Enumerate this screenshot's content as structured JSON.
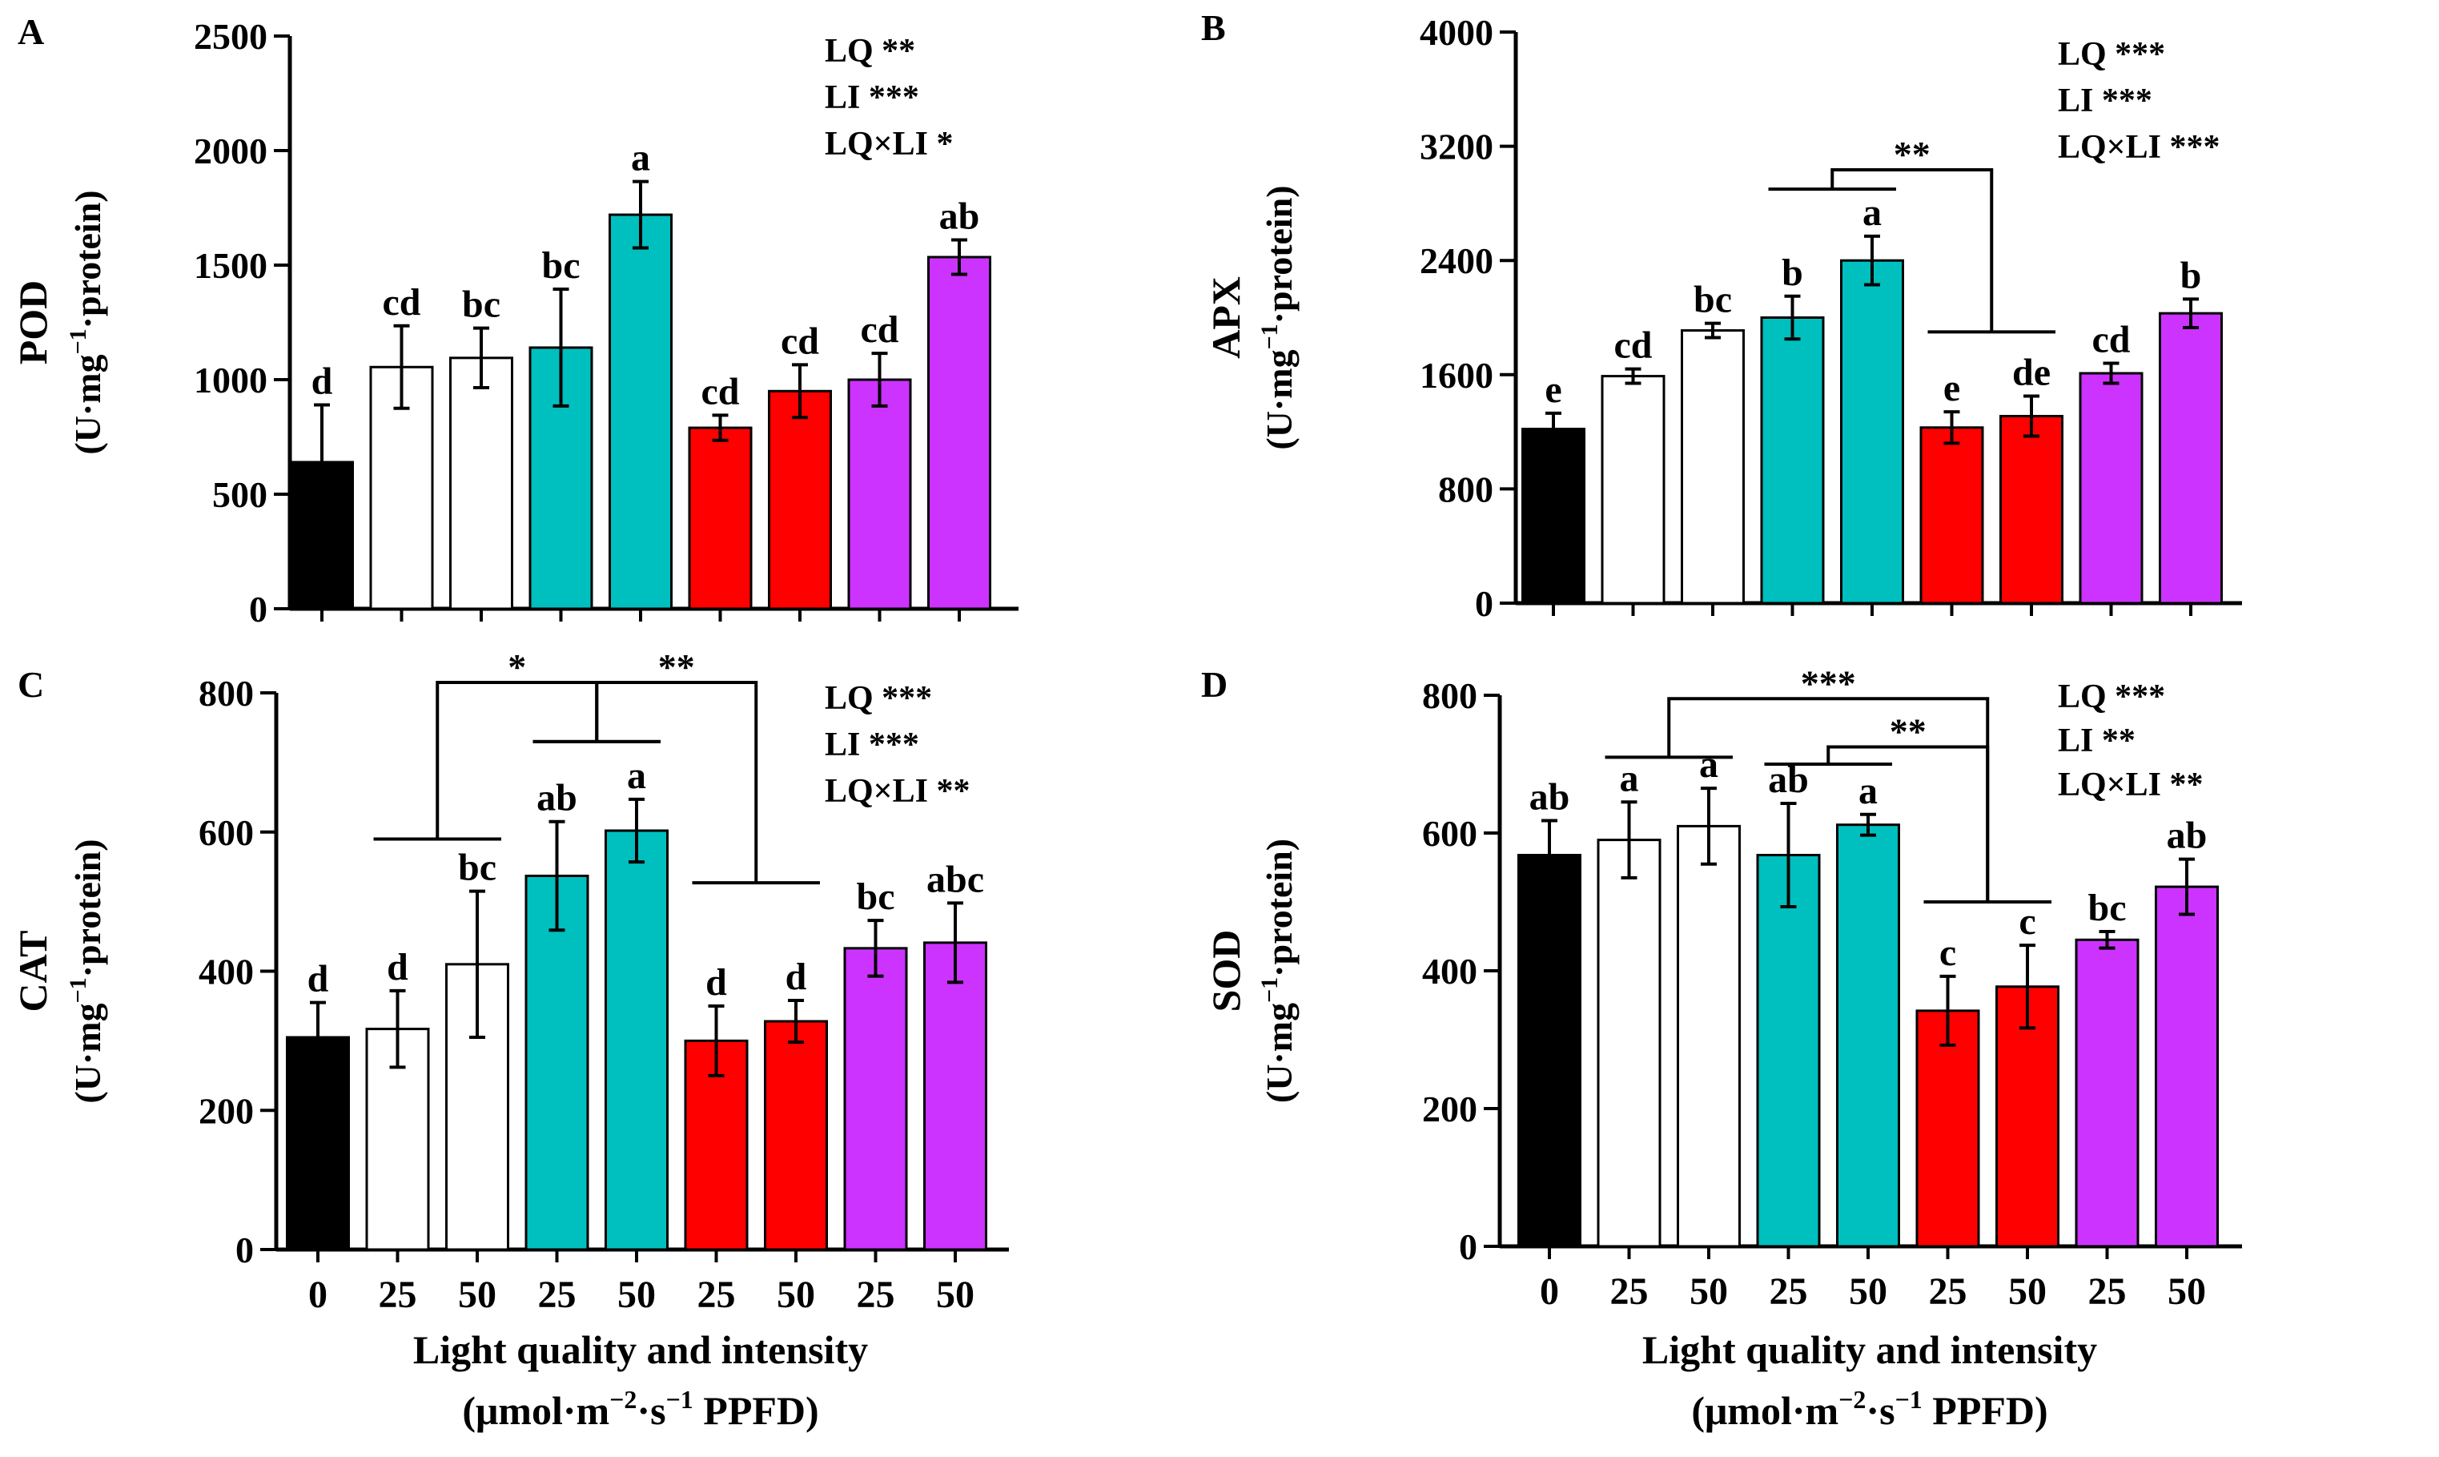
{
  "chart_data": [
    {
      "panel": "A",
      "type": "bar",
      "title": "",
      "ylabel_main": "POD",
      "ylabel_unit_prefix": "(U·mg",
      "ylabel_unit_sup": "−1",
      "ylabel_unit_suffix": "·protein)",
      "ylim": [
        0,
        2500
      ],
      "yticks": [
        0,
        500,
        1000,
        1500,
        2000,
        2500
      ],
      "ytick_labels": [
        "0",
        "500",
        "1000",
        "1500",
        "2000",
        "2500"
      ],
      "x_tick_labels": [
        "0",
        "25",
        "50",
        "25",
        "50",
        "25",
        "50",
        "25",
        "50"
      ],
      "values": [
        640,
        1055,
        1095,
        1140,
        1720,
        790,
        950,
        1000,
        1535
      ],
      "errors": [
        250,
        180,
        130,
        255,
        145,
        55,
        115,
        115,
        75
      ],
      "letters": [
        "d",
        "cd",
        "bc",
        "bc",
        "a",
        "cd",
        "cd",
        "cd",
        "ab"
      ],
      "colors": [
        "#000000",
        "#ffffff",
        "#ffffff",
        "#00bfbf",
        "#00bfbf",
        "#ff0000",
        "#ff0000",
        "#cc33ff",
        "#cc33ff"
      ],
      "stats": [
        "LQ **",
        "LI ***",
        "LQ×LI *"
      ],
      "brackets": []
    },
    {
      "panel": "B",
      "type": "bar",
      "title": "",
      "ylabel_main": "APX",
      "ylabel_unit_prefix": "(U·mg",
      "ylabel_unit_sup": "−1",
      "ylabel_unit_suffix": "·protein)",
      "ylim": [
        0,
        4000
      ],
      "yticks": [
        0,
        800,
        1600,
        2400,
        3200,
        4000
      ],
      "ytick_labels": [
        "0",
        "800",
        "1600",
        "2400",
        "3200",
        "4000"
      ],
      "x_tick_labels": [
        "0",
        "25",
        "50",
        "25",
        "50",
        "25",
        "50",
        "25",
        "50"
      ],
      "values": [
        1220,
        1590,
        1910,
        2000,
        2400,
        1230,
        1310,
        1610,
        2030
      ],
      "errors": [
        110,
        50,
        50,
        150,
        170,
        110,
        140,
        70,
        100
      ],
      "letters": [
        "e",
        "cd",
        "bc",
        "b",
        "a",
        "e",
        "de",
        "cd",
        "b"
      ],
      "colors": [
        "#000000",
        "#ffffff",
        "#ffffff",
        "#00bfbf",
        "#00bfbf",
        "#ff0000",
        "#ff0000",
        "#cc33ff",
        "#cc33ff"
      ],
      "stats": [
        "LQ ***",
        "LI ***",
        "LQ×LI ***"
      ],
      "brackets": [
        {
          "label": "**",
          "group_a": [
            3,
            4
          ],
          "group_b": [
            5,
            6
          ],
          "top": 3035,
          "leg_a": 2900,
          "leg_b": 1900
        }
      ]
    },
    {
      "panel": "C",
      "type": "bar",
      "title": "",
      "ylabel_main": "CAT",
      "ylabel_unit_prefix": "(U·mg",
      "ylabel_unit_sup": "−1",
      "ylabel_unit_suffix": "·protein)",
      "ylim": [
        0,
        800
      ],
      "yticks": [
        0,
        200,
        400,
        600,
        800
      ],
      "ytick_labels": [
        "0",
        "200",
        "400",
        "600",
        "800"
      ],
      "x_tick_labels": [
        "0",
        "25",
        "50",
        "25",
        "50",
        "25",
        "50",
        "25",
        "50"
      ],
      "values": [
        305,
        317,
        410,
        537,
        602,
        300,
        328,
        433,
        441
      ],
      "errors": [
        50,
        55,
        105,
        78,
        45,
        50,
        30,
        40,
        57
      ],
      "letters": [
        "d",
        "d",
        "bc",
        "ab",
        "a",
        "d",
        "d",
        "bc",
        "abc"
      ],
      "colors": [
        "#000000",
        "#ffffff",
        "#ffffff",
        "#00bfbf",
        "#00bfbf",
        "#ff0000",
        "#ff0000",
        "#cc33ff",
        "#cc33ff"
      ],
      "stats": [
        "LQ ***",
        "LI ***",
        "LQ×LI **"
      ],
      "brackets": [
        {
          "label": "*",
          "group_a": [
            1,
            2
          ],
          "group_b": [
            3,
            4
          ],
          "top": 815,
          "leg_a": 590,
          "leg_b": 730
        },
        {
          "label": "**",
          "group_a": [
            3,
            4
          ],
          "group_b": [
            5,
            6
          ],
          "top": 815,
          "leg_a": 730,
          "leg_b": 527
        }
      ]
    },
    {
      "panel": "D",
      "type": "bar",
      "title": "",
      "ylabel_main": "SOD",
      "ylabel_unit_prefix": "(U·mg",
      "ylabel_unit_sup": "−1",
      "ylabel_unit_suffix": "·protein)",
      "ylim": [
        0,
        800
      ],
      "yticks": [
        0,
        200,
        400,
        600,
        800
      ],
      "ytick_labels": [
        "0",
        "200",
        "400",
        "600",
        "800"
      ],
      "x_tick_labels": [
        "0",
        "25",
        "50",
        "25",
        "50",
        "25",
        "50",
        "25",
        "50"
      ],
      "values": [
        568,
        590,
        610,
        568,
        612,
        342,
        377,
        445,
        522
      ],
      "errors": [
        50,
        55,
        55,
        75,
        15,
        50,
        60,
        12,
        40
      ],
      "letters": [
        "ab",
        "a",
        "a",
        "ab",
        "a",
        "c",
        "c",
        "bc",
        "ab"
      ],
      "colors": [
        "#000000",
        "#ffffff",
        "#ffffff",
        "#00bfbf",
        "#00bfbf",
        "#ff0000",
        "#ff0000",
        "#cc33ff",
        "#cc33ff"
      ],
      "stats": [
        "LQ ***",
        "LI **",
        "LQ×LI **"
      ],
      "brackets": [
        {
          "label": "***",
          "group_a": [
            1,
            2
          ],
          "group_b": [
            5,
            6
          ],
          "top": 795,
          "leg_a": 710,
          "leg_b": 500
        },
        {
          "label": "**",
          "group_a": [
            3,
            4
          ],
          "group_b": [
            5,
            6
          ],
          "top": 725,
          "leg_a": 700,
          "leg_b": 500
        }
      ]
    }
  ],
  "panel_labels": [
    "A",
    "B",
    "C",
    "D"
  ],
  "xlabel_line1": "Light quality and intensity",
  "xlabel_line2_prefix": "(μmol·m",
  "xlabel_line2_sup1": "−2",
  "xlabel_line2_mid": "·s",
  "xlabel_line2_sup2": "−1",
  "xlabel_line2_suffix": " PPFD)"
}
